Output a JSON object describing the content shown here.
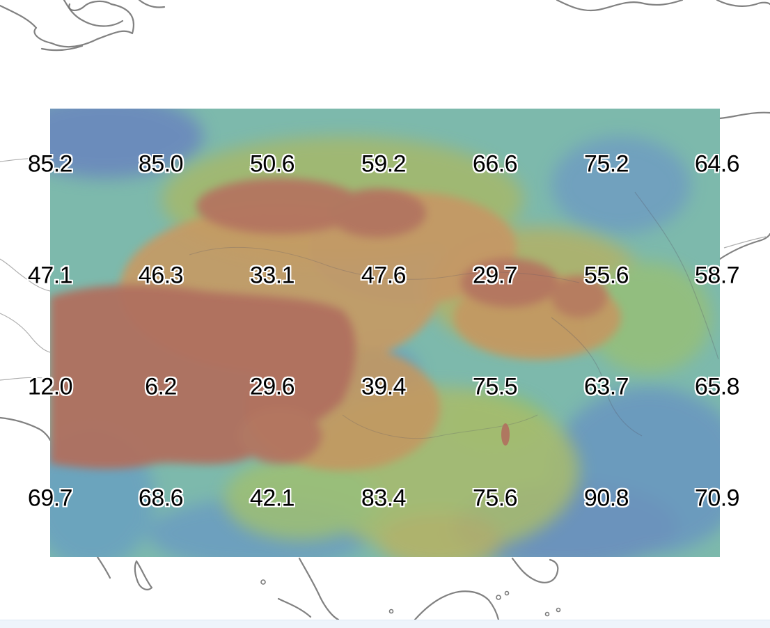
{
  "map": {
    "type": "gridded-value-overlay",
    "colors": {
      "high": "#b0705e",
      "mid_high": "#c99a63",
      "mid": "#a9b86a",
      "mid_low": "#7fbf86",
      "low": "#6aa6b3",
      "lowest": "#6b88bd",
      "label_text": "#000000",
      "label_halo": "#ffffff",
      "coastline": "#6b6b6b"
    },
    "grid": {
      "rows": [
        [
          "85.2",
          "85.0",
          "50.6",
          "59.2",
          "66.6",
          "75.2",
          "64.6"
        ],
        [
          "47.1",
          "46.3",
          "33.1",
          "47.6",
          "29.7",
          "55.6",
          "58.7"
        ],
        [
          "12.0",
          "6.2",
          "29.6",
          "39.4",
          "75.5",
          "63.7",
          "65.8"
        ],
        [
          "69.7",
          "68.6",
          "42.1",
          "83.4",
          "75.6",
          "90.8",
          "70.9"
        ]
      ]
    }
  }
}
